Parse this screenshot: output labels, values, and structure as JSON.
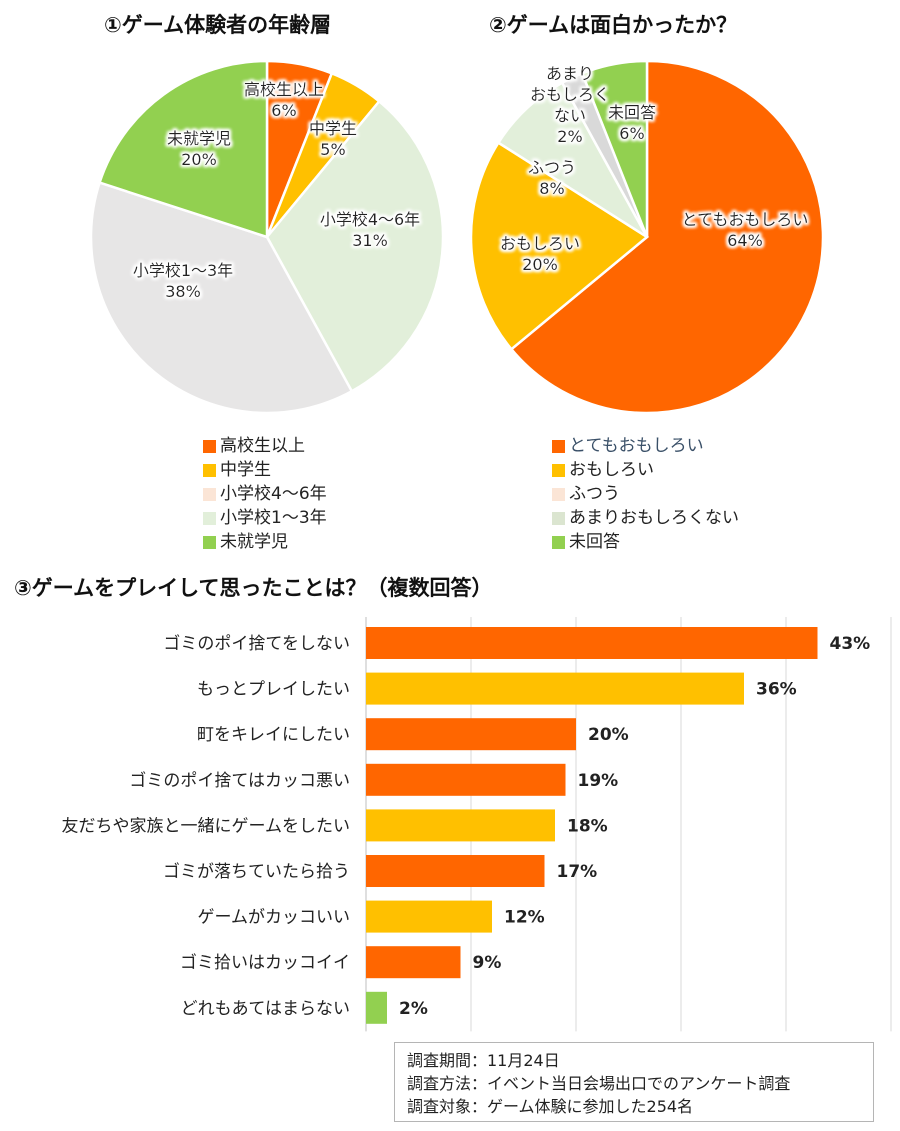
{
  "chart_data": [
    {
      "type": "pie",
      "title": "①ゲーム体験者の年齢層",
      "slices": [
        {
          "name": "高校生以上",
          "value": 6,
          "label": "6%",
          "color": "#ff6600"
        },
        {
          "name": "中学生",
          "value": 5,
          "label": "5%",
          "color": "#ffc000"
        },
        {
          "name": "小学校4～6年",
          "value": 31,
          "label": "31%",
          "color": "#e2efda"
        },
        {
          "name": "小学校1～3年",
          "value": 38,
          "label": "38%",
          "color": "#e7e6e6"
        },
        {
          "name": "未就学児",
          "value": 20,
          "label": "20%",
          "color": "#92d050"
        }
      ],
      "legend": [
        {
          "name": "高校生以上",
          "color": "#ff6600"
        },
        {
          "name": "中学生",
          "color": "#ffc000"
        },
        {
          "name": "小学校4～6年",
          "color": "#fbe5d6"
        },
        {
          "name": "小学校1～3年",
          "color": "#e2efda"
        },
        {
          "name": "未就学児",
          "color": "#92d050"
        }
      ],
      "legend_position": "bottom"
    },
    {
      "type": "pie",
      "title": "②ゲームは面白かったか？",
      "slices": [
        {
          "name": "とてもおもしろい",
          "value": 64,
          "label": "64%",
          "color": "#ff6600"
        },
        {
          "name": "おもしろい",
          "value": 20,
          "label": "20%",
          "color": "#ffc000"
        },
        {
          "name": "ふつう",
          "value": 8,
          "label": "8%",
          "color": "#e2efda"
        },
        {
          "name": "あまりおもしろくない",
          "display_name": "あまり\nおもしろく\nない",
          "value": 2,
          "label": "2%",
          "color": "#d9d9d9"
        },
        {
          "name": "未回答",
          "value": 6,
          "label": "6%",
          "color": "#92d050"
        }
      ],
      "legend": [
        {
          "name": "とてもおもしろい",
          "color": "#ff6600",
          "text_color": "#3a5068"
        },
        {
          "name": "おもしろい",
          "color": "#ffc000"
        },
        {
          "name": "ふつう",
          "color": "#fbe5d6"
        },
        {
          "name": "あまりおもしろくない",
          "color": "#dbe5d0"
        },
        {
          "name": "未回答",
          "color": "#92d050"
        }
      ],
      "legend_position": "bottom"
    },
    {
      "type": "bar",
      "orientation": "horizontal",
      "title": "③ゲームをプレイして思ったことは？（複数回答）",
      "categories": [
        "ゴミのポイ捨てをしない",
        "もっとプレイしたい",
        "町をキレイにしたい",
        "ゴミのポイ捨てはカッコ悪い",
        "友だちや家族と一緒にゲームをしたい",
        "ゴミが落ちていたら拾う",
        "ゲームがカッコいい",
        "ゴミ拾いはカッコイイ",
        "どれもあてはまらない"
      ],
      "values": [
        43,
        36,
        20,
        19,
        18,
        17,
        12,
        9,
        2
      ],
      "labels": [
        "43%",
        "36%",
        "20%",
        "19%",
        "18%",
        "17%",
        "12%",
        "9%",
        "2%"
      ],
      "colors": [
        "#ff6600",
        "#ffc000",
        "#ff6600",
        "#ff6600",
        "#ffc000",
        "#ff6600",
        "#ffc000",
        "#ff6600",
        "#92d050"
      ],
      "xlim": [
        0,
        50
      ],
      "grid": true
    }
  ],
  "note": {
    "lines": [
      "調査期間：11月24日",
      "調査方法：イベント当日会場出口でのアンケート調査",
      "調査対象：ゲーム体験に参加した254名"
    ]
  }
}
